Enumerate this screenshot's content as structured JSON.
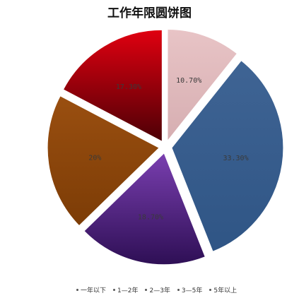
{
  "chart_data": {
    "type": "pie",
    "title": "工作年限圆饼图",
    "categories": [
      "一年以下",
      "1—2年",
      "2—3年",
      "3—5年",
      "5年以上"
    ],
    "slices": [
      {
        "label": "10.70%",
        "value": 10.7,
        "color": "#e8c4c6",
        "color_dark": "#d6aeb1"
      },
      {
        "label": "33.30%",
        "value": 33.3,
        "color": "#3f6494",
        "color_dark": "#2f5585"
      },
      {
        "label": "18.70%",
        "value": 18.7,
        "color": "#7a3fb0",
        "color_dark": "#2e0f55"
      },
      {
        "label": "20%",
        "value": 20,
        "color": "#9a4f10",
        "color_dark": "#7c3c06"
      },
      {
        "label": "17.30%",
        "value": 17.3,
        "color": "#e00010",
        "color_dark": "#4d0006"
      }
    ],
    "legend_position": "bottom"
  }
}
